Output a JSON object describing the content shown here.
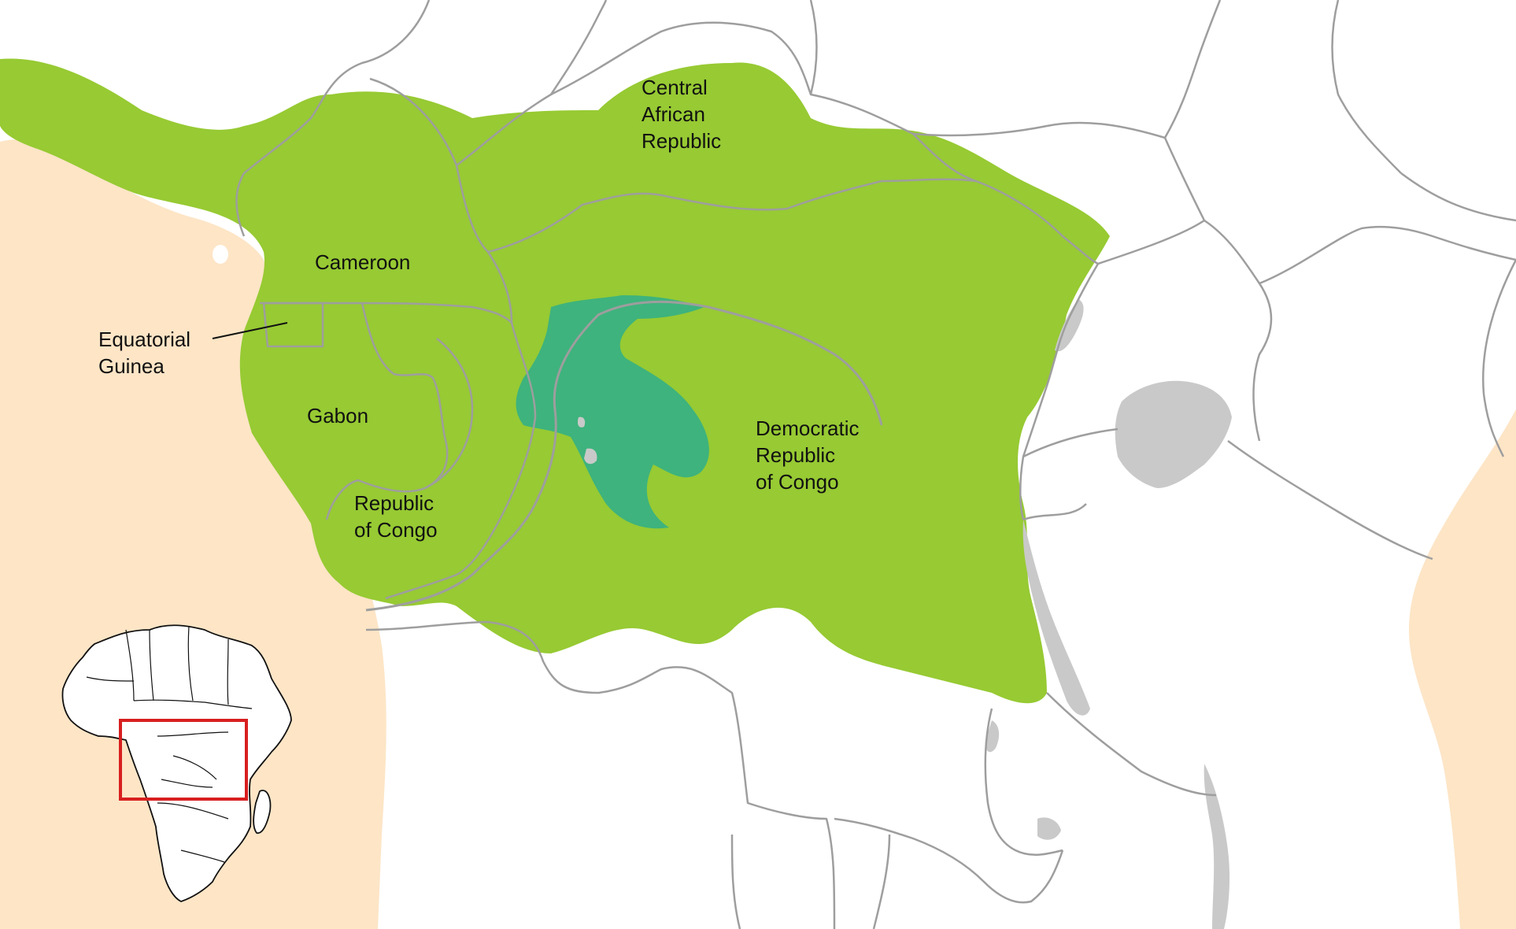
{
  "colors": {
    "ocean": "#fde5c6",
    "land": "#ffffff",
    "forest": "#97ca33",
    "swamp_forest": "#3eb37d",
    "lakes": "#c9c9c9",
    "borders": "#9e9e9e",
    "inset_outline": "#111111",
    "inset_highlight": "#d81f1f"
  },
  "labels": {
    "car": [
      "Central",
      "African",
      "Republic"
    ],
    "cameroon": [
      "Cameroon"
    ],
    "eq_guinea": [
      "Equatorial",
      "Guinea"
    ],
    "gabon": [
      "Gabon"
    ],
    "roc": [
      "Republic",
      "of Congo"
    ],
    "drc": [
      "Democratic",
      "Republic",
      "of Congo"
    ]
  },
  "inset": {
    "name": "africa-locator",
    "highlight": "red-rectangle"
  }
}
